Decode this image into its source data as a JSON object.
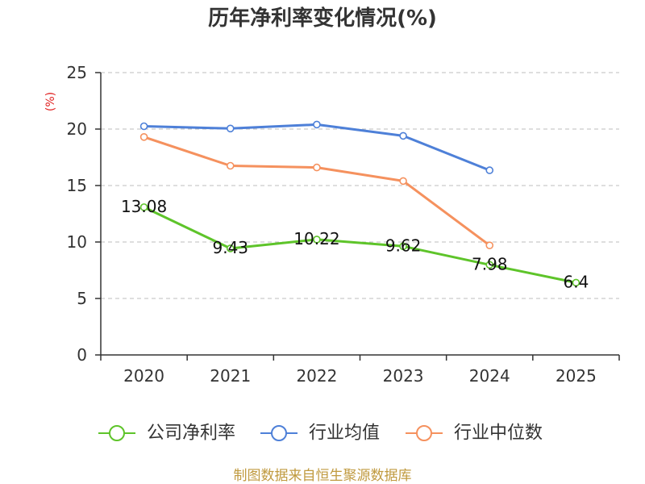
{
  "chart_data": {
    "type": "line",
    "title": "历年净利率变化情况(%)",
    "xlabel": "",
    "ylabel": "(%)",
    "ylim": [
      0,
      25
    ],
    "yticks": [
      0,
      5,
      10,
      15,
      20,
      25
    ],
    "categories": [
      "2020",
      "2021",
      "2022",
      "2023",
      "2024",
      "2025"
    ],
    "series": [
      {
        "name": "公司净利率",
        "color": "#5ec42a",
        "values": [
          13.08,
          9.43,
          10.22,
          9.62,
          7.98,
          6.4
        ],
        "show_labels": true
      },
      {
        "name": "行业均值",
        "color": "#4e80d8",
        "values": [
          20.25,
          20.05,
          20.4,
          19.4,
          16.35,
          null
        ],
        "show_labels": false
      },
      {
        "name": "行业中位数",
        "color": "#f5915e",
        "values": [
          19.3,
          16.75,
          16.6,
          15.4,
          9.7,
          null
        ],
        "show_labels": false
      }
    ],
    "grid": true,
    "legend": "bottom"
  },
  "footer": "制图数据来自恒生聚源数据库"
}
